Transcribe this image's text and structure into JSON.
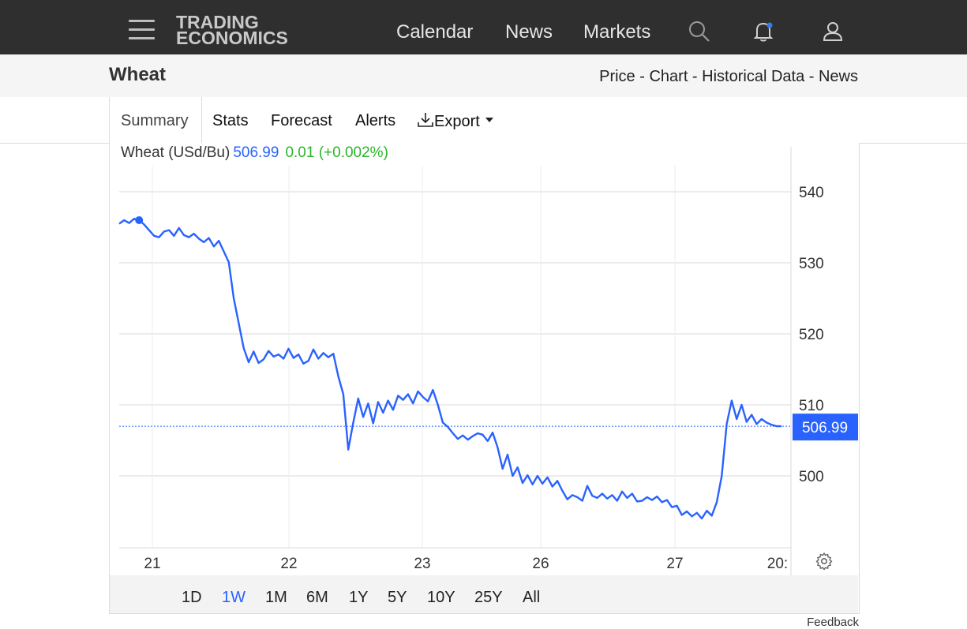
{
  "header": {
    "logo_line1": "TRADING",
    "logo_line2": "ECONOMICS",
    "nav": [
      "Calendar",
      "News",
      "Markets"
    ]
  },
  "title": "Wheat",
  "sublinks": [
    "Price",
    "Chart",
    "Historical Data",
    "News"
  ],
  "sublink_sep": " - ",
  "tabs": {
    "summary": "Summary",
    "stats": "Stats",
    "forecast": "Forecast",
    "alerts": "Alerts",
    "export": "Export"
  },
  "legend": {
    "name": "Wheat (USd/Bu)",
    "price": "506.99",
    "change": "0.01 (+0.002%)"
  },
  "ranges": [
    "1D",
    "1W",
    "1M",
    "6M",
    "1Y",
    "5Y",
    "10Y",
    "25Y",
    "All"
  ],
  "active_range": "1W",
  "feedback": "Feedback",
  "colors": {
    "line": "#2962ff",
    "positive": "#2bb52b",
    "header": "#2f2f2f"
  },
  "chart_data": {
    "type": "line",
    "x_tick_labels": [
      "21",
      "22",
      "23",
      "26",
      "27",
      "20:"
    ],
    "y_ticks": [
      500,
      510,
      520,
      530,
      540
    ],
    "ylim": [
      490,
      544
    ],
    "last_value_label": "506.99",
    "series": [
      {
        "values": [
          535.5,
          536.0,
          535.6,
          536.2,
          536.0,
          535.4,
          534.6,
          533.8,
          533.6,
          534.4,
          534.6,
          533.8,
          534.9,
          533.9,
          533.6,
          534.1,
          533.4,
          532.9,
          533.5,
          532.3,
          533.1,
          531.6,
          530.1,
          525.0,
          521.5,
          518.0,
          516.0,
          517.5,
          515.9,
          516.4,
          517.6,
          516.8,
          517.1,
          516.5,
          517.9,
          516.6,
          517.1,
          515.8,
          516.2,
          517.8,
          516.5,
          517.3,
          516.7,
          517.2,
          514.0,
          511.5,
          503.7,
          507.5,
          510.9,
          508.3,
          510.2,
          507.4,
          510.4,
          508.9,
          510.6,
          509.3,
          511.3,
          510.7,
          511.5,
          510.2,
          511.9,
          511.1,
          510.5,
          512.1,
          510.0,
          507.5,
          506.9,
          506.0,
          505.2,
          505.7,
          505.1,
          505.6,
          506.0,
          505.8,
          504.9,
          506.1,
          504.0,
          501.0,
          503.0,
          500.0,
          501.2,
          499.0,
          500.1,
          498.8,
          500.0,
          498.9,
          499.8,
          498.5,
          499.3,
          497.9,
          496.7,
          497.3,
          497.0,
          496.5,
          498.6,
          497.2,
          496.9,
          497.5,
          496.8,
          497.3,
          496.5,
          497.8,
          496.9,
          497.5,
          496.4,
          496.5,
          497.0,
          496.6,
          497.1,
          496.3,
          496.6,
          495.6,
          495.8,
          494.5,
          495.0,
          494.3,
          494.8,
          494.0,
          495.1,
          494.4,
          496.3,
          500.0,
          507.3,
          510.6,
          508.0,
          510.0,
          507.6,
          508.6,
          507.3,
          508.0,
          507.5,
          507.2,
          507.0,
          506.99
        ]
      }
    ]
  }
}
